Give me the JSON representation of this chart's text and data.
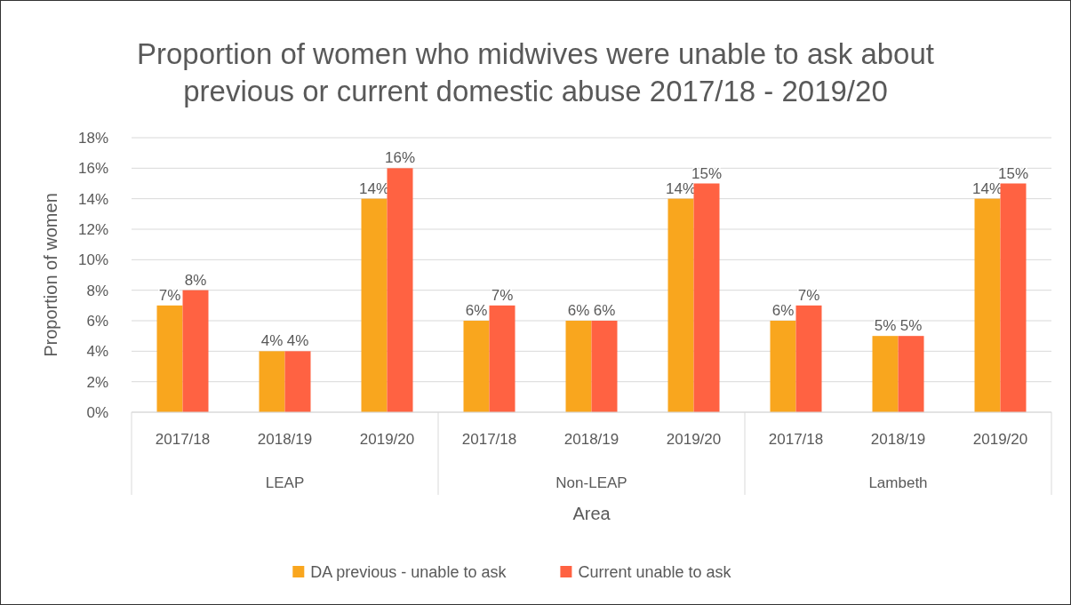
{
  "chart_data": {
    "type": "bar",
    "title": "Proportion of women who midwives were unable to ask about previous or current domestic abuse 2017/18 - 2019/20",
    "xlabel": "Area",
    "ylabel": "Proportion of women",
    "categories": [
      "2017/18",
      "2018/19",
      "2019/20",
      "2017/18",
      "2018/19",
      "2019/20",
      "2017/18",
      "2018/19",
      "2019/20"
    ],
    "annotations": [
      "LEAP",
      "Non-LEAP",
      "Lambeth"
    ],
    "series": [
      {
        "name": "DA previous - unable to ask",
        "color": "#f9a61e",
        "values": [
          7,
          4,
          14,
          6,
          6,
          14,
          6,
          5,
          14
        ],
        "value_labels": [
          "7%",
          "4%",
          "14%",
          "6%",
          "6%",
          "14%",
          "6%",
          "5%",
          "14%"
        ]
      },
      {
        "name": "Current unable to ask",
        "color": "#ff6242",
        "values": [
          8,
          4,
          16,
          7,
          6,
          15,
          7,
          5,
          15
        ],
        "value_labels": [
          "8%",
          "4%",
          "16%",
          "7%",
          "6%",
          "15%",
          "7%",
          "5%",
          "15%"
        ]
      }
    ],
    "ylim": [
      0,
      18
    ],
    "yticks": [
      {
        "value": 0,
        "label": "0%"
      },
      {
        "value": 2,
        "label": "2%"
      },
      {
        "value": 4,
        "label": "4%"
      },
      {
        "value": 6,
        "label": "6%"
      },
      {
        "value": 8,
        "label": "8%"
      },
      {
        "value": 10,
        "label": "10%"
      },
      {
        "value": 12,
        "label": "12%"
      },
      {
        "value": 14,
        "label": "14%"
      },
      {
        "value": 16,
        "label": "16%"
      },
      {
        "value": 18,
        "label": "18%"
      }
    ],
    "grid": "y",
    "legend": "bottom"
  }
}
